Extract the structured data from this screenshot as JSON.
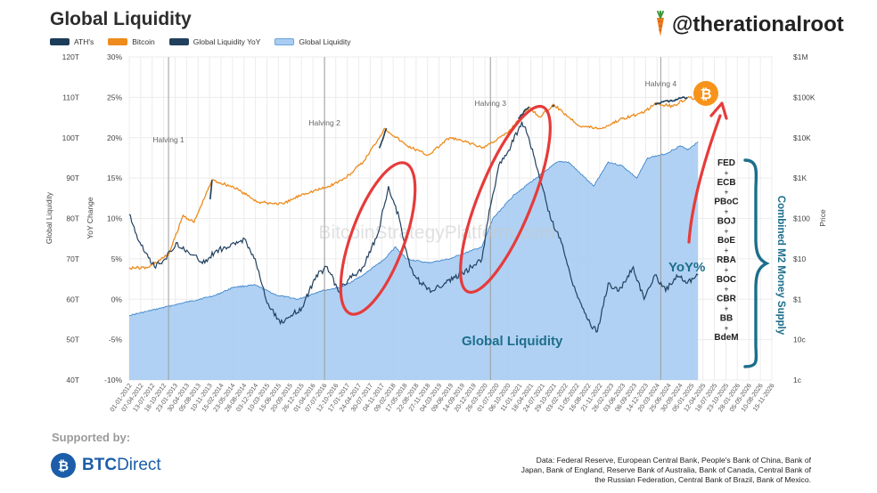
{
  "header": {
    "title": "Global Liquidity",
    "handle": "@therationalroot"
  },
  "legend": {
    "items": [
      {
        "label": "ATH's",
        "color": "#1c3d5a"
      },
      {
        "label": "Bitcoin",
        "color": "#ed8b1c"
      },
      {
        "label": "Global Liquidity YoY",
        "color": "#22405e"
      },
      {
        "label": "Global Liquidity",
        "color": "#a9cdf2"
      }
    ]
  },
  "footer": {
    "supported_by": "Supported by:",
    "brand_prefix": "BTC",
    "brand_suffix": "Direct",
    "source_text": "Data: Federal Reserve, European Central Bank, People's Bank of China, Bank of Japan, Bank of England, Reserve Bank of Australia, Bank of Canada, Central Bank of the Russian Federation, Central Bank of Brazil, Bank of Mexico."
  },
  "chart_data": {
    "type": "area",
    "xlabel": "",
    "axes": {
      "left1": {
        "label": "Global Liquidity",
        "ticks": [
          "40T",
          "50T",
          "60T",
          "70T",
          "80T",
          "90T",
          "100T",
          "110T",
          "120T"
        ],
        "range": [
          40,
          120
        ]
      },
      "left2": {
        "label": "YoY Change",
        "ticks": [
          "-10%",
          "-5%",
          "0%",
          "5%",
          "10%",
          "15%",
          "20%",
          "25%",
          "30%"
        ],
        "range": [
          -10,
          30
        ]
      },
      "right": {
        "label": "Price",
        "ticks": [
          "1c",
          "10c",
          "$1",
          "$10",
          "$100",
          "$1K",
          "$10K",
          "$100K",
          "$1M"
        ],
        "scale": "log",
        "range_log10": [
          -2,
          6
        ]
      }
    },
    "x_ticks": [
      "01-01-2012",
      "07-04-2012",
      "13-07-2012",
      "18-10-2012",
      "23-01-2013",
      "30-04-2013",
      "05-08-2013",
      "10-11-2013",
      "15-02-2014",
      "23-05-2014",
      "28-08-2014",
      "03-12-2014",
      "10-03-2015",
      "15-06-2015",
      "20-09-2015",
      "26-12-2015",
      "01-04-2016",
      "07-07-2016",
      "12-10-2016",
      "17-01-2017",
      "24-04-2017",
      "30-07-2017",
      "04-11-2017",
      "09-02-2018",
      "17-05-2018",
      "22-08-2018",
      "27-11-2018",
      "04-03-2019",
      "09-06-2019",
      "14-09-2019",
      "20-12-2019",
      "26-03-2020",
      "01-07-2020",
      "06-10-2020",
      "11-01-2021",
      "18-04-2021",
      "24-07-2021",
      "29-10-2021",
      "03-02-2022",
      "11-05-2022",
      "16-08-2022",
      "21-11-2022",
      "26-02-2023",
      "03-06-2023",
      "08-09-2023",
      "14-12-2023",
      "20-03-2024",
      "25-06-2024",
      "30-09-2024",
      "05-01-2025",
      "12-04-2025",
      "18-07-2025",
      "23-10-2025",
      "28-01-2026",
      "05-05-2026",
      "10-08-2026",
      "15-11-2026"
    ],
    "x_range": [
      "2012-01-01",
      "2026-11-15"
    ],
    "halvings": [
      {
        "label": "Halving 1",
        "date": "2012-11-28"
      },
      {
        "label": "Halving 2",
        "date": "2016-07-09"
      },
      {
        "label": "Halving 3",
        "date": "2020-05-11"
      },
      {
        "label": "Halving 4",
        "date": "2024-04-20"
      }
    ],
    "series": [
      {
        "name": "Global Liquidity",
        "axis": "left1",
        "color": "#a9cdf2",
        "line_color": "#2f7bc6",
        "points": [
          [
            "2012-01-01",
            56
          ],
          [
            "2012-06-01",
            57
          ],
          [
            "2013-01-01",
            58.5
          ],
          [
            "2013-06-01",
            59.5
          ],
          [
            "2014-01-01",
            61
          ],
          [
            "2014-06-01",
            63
          ],
          [
            "2014-12-01",
            63.5
          ],
          [
            "2015-06-01",
            61
          ],
          [
            "2015-12-01",
            60
          ],
          [
            "2016-06-01",
            62
          ],
          [
            "2016-12-01",
            63
          ],
          [
            "2017-06-01",
            66
          ],
          [
            "2017-12-01",
            70
          ],
          [
            "2018-03-01",
            73
          ],
          [
            "2018-06-01",
            70
          ],
          [
            "2018-12-01",
            69
          ],
          [
            "2019-06-01",
            70
          ],
          [
            "2019-12-01",
            72
          ],
          [
            "2020-03-01",
            73
          ],
          [
            "2020-06-01",
            80
          ],
          [
            "2020-12-01",
            86
          ],
          [
            "2021-06-01",
            90
          ],
          [
            "2021-12-01",
            94
          ],
          [
            "2022-03-01",
            94
          ],
          [
            "2022-10-01",
            88
          ],
          [
            "2023-02-01",
            94
          ],
          [
            "2023-06-01",
            93
          ],
          [
            "2023-10-01",
            90
          ],
          [
            "2024-01-01",
            95
          ],
          [
            "2024-06-01",
            96
          ],
          [
            "2024-10-01",
            98
          ],
          [
            "2024-12-01",
            97
          ],
          [
            "2025-03-01",
            99
          ]
        ]
      },
      {
        "name": "Global Liquidity YoY",
        "axis": "left2",
        "color": "#22405e",
        "points": [
          [
            "2012-01-01",
            10.5
          ],
          [
            "2012-04-01",
            7
          ],
          [
            "2012-08-01",
            4
          ],
          [
            "2012-11-01",
            5
          ],
          [
            "2013-02-01",
            7
          ],
          [
            "2013-06-01",
            5.5
          ],
          [
            "2013-10-01",
            4.5
          ],
          [
            "2014-01-01",
            6
          ],
          [
            "2014-05-01",
            6.5
          ],
          [
            "2014-09-01",
            7.5
          ],
          [
            "2014-12-01",
            5
          ],
          [
            "2015-03-01",
            0
          ],
          [
            "2015-07-01",
            -3
          ],
          [
            "2015-10-01",
            -2
          ],
          [
            "2016-01-01",
            -1
          ],
          [
            "2016-05-01",
            3
          ],
          [
            "2016-08-01",
            4
          ],
          [
            "2016-11-01",
            1
          ],
          [
            "2017-02-01",
            2.5
          ],
          [
            "2017-06-01",
            4
          ],
          [
            "2017-10-01",
            8
          ],
          [
            "2018-01-01",
            14
          ],
          [
            "2018-04-01",
            10
          ],
          [
            "2018-07-01",
            4
          ],
          [
            "2018-10-01",
            2
          ],
          [
            "2019-01-01",
            1
          ],
          [
            "2019-05-01",
            2
          ],
          [
            "2019-09-01",
            3
          ],
          [
            "2019-12-01",
            4
          ],
          [
            "2020-03-01",
            5
          ],
          [
            "2020-05-01",
            11
          ],
          [
            "2020-08-01",
            17
          ],
          [
            "2020-11-01",
            19
          ],
          [
            "2021-02-01",
            22
          ],
          [
            "2021-04-01",
            20
          ],
          [
            "2021-07-01",
            15
          ],
          [
            "2021-10-01",
            10
          ],
          [
            "2022-01-01",
            7
          ],
          [
            "2022-05-01",
            1
          ],
          [
            "2022-09-01",
            -3
          ],
          [
            "2022-11-01",
            -4
          ],
          [
            "2023-02-01",
            2
          ],
          [
            "2023-05-01",
            1
          ],
          [
            "2023-09-01",
            4
          ],
          [
            "2023-12-01",
            0
          ],
          [
            "2024-03-01",
            3
          ],
          [
            "2024-06-01",
            1
          ],
          [
            "2024-09-01",
            3
          ],
          [
            "2024-12-01",
            2
          ],
          [
            "2025-03-01",
            3
          ]
        ]
      },
      {
        "name": "Bitcoin",
        "axis": "right",
        "color": "#ed8b1c",
        "points": [
          [
            "2012-01-01",
            6
          ],
          [
            "2012-06-01",
            6
          ],
          [
            "2012-12-01",
            13
          ],
          [
            "2013-04-01",
            120
          ],
          [
            "2013-07-01",
            80
          ],
          [
            "2013-12-01",
            900
          ],
          [
            "2014-06-01",
            600
          ],
          [
            "2015-01-01",
            250
          ],
          [
            "2015-08-01",
            230
          ],
          [
            "2016-01-01",
            400
          ],
          [
            "2016-08-01",
            600
          ],
          [
            "2017-01-01",
            1000
          ],
          [
            "2017-06-01",
            2500
          ],
          [
            "2017-12-01",
            17000
          ],
          [
            "2018-06-01",
            6500
          ],
          [
            "2018-12-01",
            3700
          ],
          [
            "2019-06-01",
            10000
          ],
          [
            "2019-12-01",
            7200
          ],
          [
            "2020-03-01",
            5500
          ],
          [
            "2020-10-01",
            13000
          ],
          [
            "2021-04-01",
            58000
          ],
          [
            "2021-07-01",
            33000
          ],
          [
            "2021-11-01",
            65000
          ],
          [
            "2022-06-01",
            20000
          ],
          [
            "2022-12-01",
            16800
          ],
          [
            "2023-06-01",
            30000
          ],
          [
            "2023-12-01",
            42000
          ],
          [
            "2024-03-01",
            70000
          ],
          [
            "2024-08-01",
            60000
          ],
          [
            "2024-12-01",
            97000
          ],
          [
            "2025-02-01",
            95000
          ],
          [
            "2025-03-01",
            84000
          ]
        ]
      },
      {
        "name": "ATH's",
        "axis": "right",
        "color": "#1c3d5a",
        "points": [
          [
            "2013-11-15",
            300
          ],
          [
            "2013-12-01",
            900
          ],
          [
            "2017-10-15",
            5500
          ],
          [
            "2017-12-15",
            17000
          ],
          [
            "2021-01-01",
            30000
          ],
          [
            "2021-04-01",
            58000
          ],
          [
            "2021-10-15",
            60000
          ],
          [
            "2021-11-01",
            65000
          ],
          [
            "2024-03-01",
            70000
          ],
          [
            "2024-12-01",
            100000
          ]
        ]
      }
    ]
  },
  "annotations": {
    "watermark": "BitcoinStrategyPlatform.com",
    "global_liquidity_label": "Global Liquidity",
    "yoy_label": "YoY%",
    "combined_label": "Combined M2 Money Supply",
    "central_banks": [
      "FED",
      "+",
      "ECB",
      "+",
      "PBoC",
      "+",
      "BOJ",
      "+",
      "BoE",
      "+",
      "RBA",
      "+",
      "BOC",
      "+",
      "CBR",
      "+",
      "BB",
      "+",
      "BdeM"
    ],
    "ellipse_color": "#e63b3b",
    "accent_teal": "#1d6e8c",
    "bitcoin_badge_color": "#f7931a"
  }
}
